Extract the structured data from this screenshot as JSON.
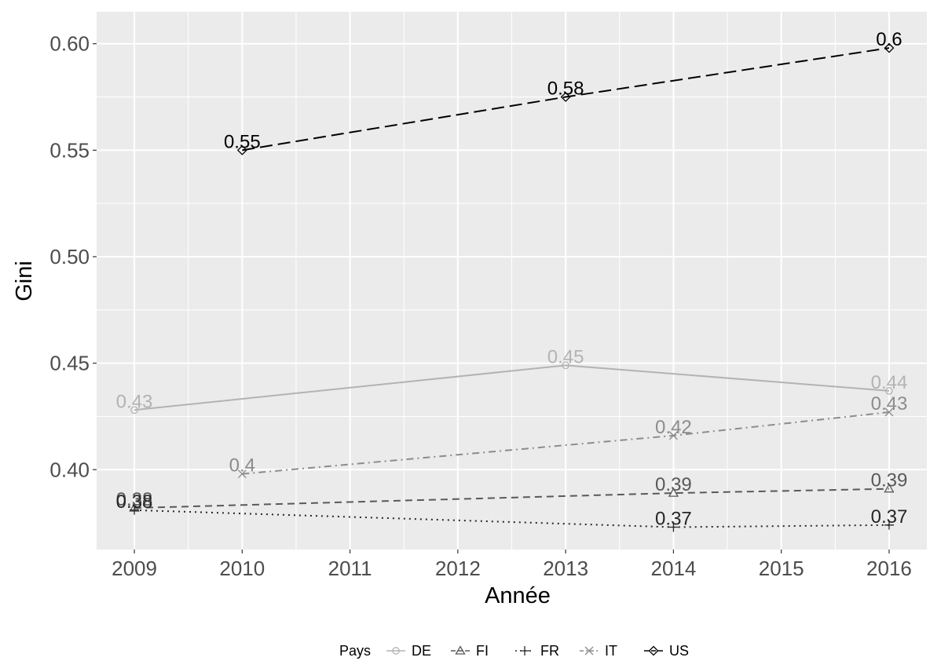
{
  "chart_data": {
    "type": "line",
    "title": "",
    "xlabel": "Année",
    "ylabel": "Gini",
    "xlim": [
      2008.65,
      2016.35
    ],
    "ylim": [
      0.3625,
      0.615
    ],
    "x_ticks": [
      2009,
      2010,
      2011,
      2012,
      2013,
      2014,
      2015,
      2016
    ],
    "y_ticks": [
      0.4,
      0.45,
      0.5,
      0.55,
      0.6
    ],
    "y_tick_labels": [
      "0.40",
      "0.45",
      "0.50",
      "0.55",
      "0.60"
    ],
    "grid": true,
    "legend": {
      "title": "Pays",
      "placement": "bottom"
    },
    "series": [
      {
        "name": "DE",
        "color": "#b3b3b3",
        "line_style": "solid",
        "marker": "circle",
        "points": [
          {
            "x": 2009,
            "y": 0.428,
            "label": "0.43"
          },
          {
            "x": 2013,
            "y": 0.449,
            "label": "0.45"
          },
          {
            "x": 2016,
            "y": 0.437,
            "label": "0.44"
          }
        ]
      },
      {
        "name": "FI",
        "color": "#595959",
        "line_style": "dashed",
        "marker": "triangle",
        "points": [
          {
            "x": 2009,
            "y": 0.382,
            "label": "0.38"
          },
          {
            "x": 2014,
            "y": 0.389,
            "label": "0.39"
          },
          {
            "x": 2016,
            "y": 0.391,
            "label": "0.39"
          }
        ]
      },
      {
        "name": "FR",
        "color": "#262626",
        "line_style": "dotted",
        "marker": "plus",
        "points": [
          {
            "x": 2009,
            "y": 0.381,
            "label": "0.38"
          },
          {
            "x": 2014,
            "y": 0.373,
            "label": "0.37"
          },
          {
            "x": 2016,
            "y": 0.374,
            "label": "0.37"
          }
        ]
      },
      {
        "name": "IT",
        "color": "#8c8c8c",
        "line_style": "dashdot",
        "marker": "cross",
        "points": [
          {
            "x": 2010,
            "y": 0.398,
            "label": "0.4"
          },
          {
            "x": 2014,
            "y": 0.416,
            "label": "0.42"
          },
          {
            "x": 2016,
            "y": 0.427,
            "label": "0.43"
          }
        ]
      },
      {
        "name": "US",
        "color": "#000000",
        "line_style": "longdash",
        "marker": "diamond",
        "points": [
          {
            "x": 2010,
            "y": 0.55,
            "label": "0.55"
          },
          {
            "x": 2013,
            "y": 0.575,
            "label": "0.58"
          },
          {
            "x": 2016,
            "y": 0.598,
            "label": "0.6"
          }
        ]
      }
    ]
  }
}
